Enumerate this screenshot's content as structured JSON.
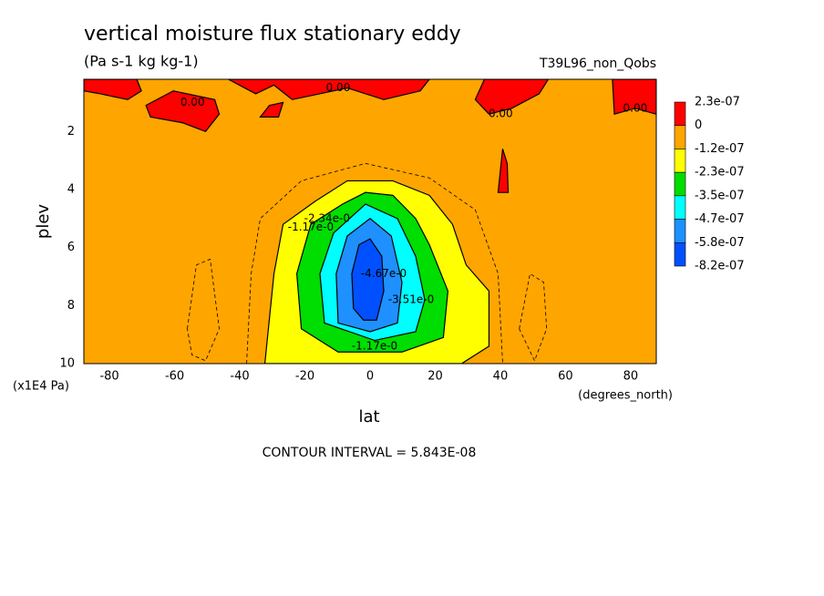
{
  "chart_data": {
    "type": "contour",
    "title": "vertical moisture flux stationary eddy",
    "subtitle": "(Pa s-1 kg kg-1)",
    "dataset": "T39L96_non_Qobs",
    "x_label": "lat",
    "x_units": "(degrees_north)",
    "y_label": "plev",
    "y_units": "(x1E4 Pa)",
    "footer": "CONTOUR INTERVAL = 5.843E-08",
    "xlim": [
      -87.86,
      87.86
    ],
    "xticks": [
      -80,
      -60,
      -40,
      -20,
      0,
      20,
      40,
      60,
      80
    ],
    "ylim": [
      10,
      0.2
    ],
    "yticks": [
      2,
      4,
      6,
      8,
      10
    ],
    "background": "#ffa500",
    "levels": [
      {
        "value": 2.3e-07,
        "label": "2.3e-07"
      },
      0,
      {
        "value": -1.2e-07,
        "label": "-1.2e-07"
      },
      {
        "value": -2.3e-07,
        "label": "-2.3e-07"
      },
      {
        "value": -3.5e-07,
        "label": "-3.5e-07"
      },
      {
        "value": -4.7e-07,
        "label": "-4.7e-07"
      },
      {
        "value": -5.8e-07,
        "label": "-5.8e-07"
      },
      {
        "value": -8.2e-07,
        "label": "-8.2e-07"
      }
    ],
    "colors": [
      "#ff0000",
      "#ffa500",
      "#ffff00",
      "#00dd00",
      "#00ffff",
      "#1e90ff",
      "#0050ff"
    ],
    "regions": [
      {
        "color": "#ffff00",
        "lat": [
          -32.3,
          -29.5,
          -26.7,
          -16.8,
          -7.0,
          7.0,
          18.2,
          25.3,
          29.5,
          36.5,
          36.5,
          28.1
        ],
        "plev": [
          10,
          6.9,
          5.2,
          4.4,
          3.7,
          3.7,
          4.2,
          5.2,
          6.6,
          7.5,
          9.4,
          10
        ]
      },
      {
        "color": "#00dd00",
        "lat": [
          -21.1,
          -22.5,
          -18.2,
          -8.4,
          -1.4,
          7.0,
          14.0,
          18.2,
          23.9,
          22.5,
          9.8,
          -9.8
        ],
        "plev": [
          8.8,
          6.9,
          5.2,
          4.5,
          4.1,
          4.2,
          5.0,
          5.9,
          7.5,
          9.1,
          9.6,
          9.6
        ]
      },
      {
        "color": "#00ffff",
        "lat": [
          -14.0,
          -15.4,
          -11.2,
          -1.4,
          8.4,
          14.0,
          16.8,
          14.0,
          1.4
        ],
        "plev": [
          8.6,
          6.9,
          5.5,
          4.5,
          5.0,
          6.3,
          7.8,
          8.9,
          9.2
        ]
      },
      {
        "color": "#1e90ff",
        "lat": [
          -9.8,
          -10.4,
          -7.0,
          0,
          6.5,
          9.8,
          8.4,
          0
        ],
        "plev": [
          8.6,
          6.9,
          5.6,
          5.0,
          5.6,
          7.2,
          8.6,
          8.9
        ]
      },
      {
        "color": "#0050ff",
        "lat": [
          -5.1,
          -5.6,
          -3.4,
          0,
          3.6,
          4.2,
          2.0,
          -2.0
        ],
        "plev": [
          8.1,
          6.9,
          5.9,
          5.7,
          6.3,
          7.5,
          8.5,
          8.5
        ]
      },
      {
        "color": "#ff0000",
        "lat": [
          -87.86,
          -71.6,
          -70.2,
          -74.4,
          -82.8,
          -87.86
        ],
        "plev": [
          0.2,
          0.2,
          0.6,
          0.9,
          0.7,
          0.6
        ]
      },
      {
        "color": "#ff0000",
        "lat": [
          -68.8,
          -60.4,
          -47.7,
          -46.3,
          -50.5,
          -57.5,
          -67.4
        ],
        "plev": [
          1.1,
          0.6,
          0.9,
          1.4,
          2.0,
          1.7,
          1.5
        ]
      },
      {
        "color": "#ff0000",
        "lat": [
          -43.5,
          18.2,
          15.4,
          4.2,
          -7.0,
          -23.9,
          -29.5,
          -35.1
        ],
        "plev": [
          0.2,
          0.2,
          0.6,
          0.9,
          0.5,
          0.9,
          0.4,
          0.7
        ]
      },
      {
        "color": "#ff0000",
        "lat": [
          -33.7,
          -30.9,
          -26.7,
          -28.1
        ],
        "plev": [
          1.5,
          1.1,
          1.0,
          1.5
        ]
      },
      {
        "color": "#ff0000",
        "lat": [
          35.1,
          54.7,
          51.9,
          43.5,
          36.5,
          32.3
        ],
        "plev": [
          0.2,
          0.2,
          0.7,
          1.2,
          1.4,
          0.9
        ]
      },
      {
        "color": "#ff0000",
        "lat": [
          74.4,
          87.86,
          87.86,
          81.4,
          75.0
        ],
        "plev": [
          0.2,
          0.2,
          1.4,
          1.2,
          1.4
        ]
      },
      {
        "color": "#ff0000",
        "lat": [
          39.3,
          40.7,
          42.1,
          42.4
        ],
        "plev": [
          4.1,
          2.6,
          3.1,
          4.1
        ]
      }
    ],
    "contours": [
      {
        "lat": [
          -37.9,
          -36.5,
          -33.7,
          -21.1,
          -1.4,
          18.2,
          32.3,
          39.3,
          40.7
        ],
        "plev": [
          10,
          6.9,
          5.0,
          3.7,
          3.1,
          3.6,
          4.7,
          6.9,
          10
        ]
      },
      {
        "lat": [
          -56.1,
          -53.3,
          -49.1,
          -46.3,
          -50.5,
          -54.7,
          -56.1
        ],
        "plev": [
          8.8,
          6.6,
          6.4,
          8.8,
          9.9,
          9.7,
          8.8
        ]
      },
      {
        "lat": [
          45.8,
          49.1,
          53.3,
          54.2,
          50.5,
          45.8
        ],
        "plev": [
          8.8,
          6.9,
          7.2,
          8.8,
          9.9,
          8.8
        ]
      }
    ],
    "annotations": [
      {
        "text": "0.00",
        "lat": -54.5,
        "plev": 1.0
      },
      {
        "text": "0.00",
        "lat": -9.8,
        "plev": 0.5
      },
      {
        "text": "0.00",
        "lat": 40.1,
        "plev": 1.4
      },
      {
        "text": "0.00",
        "lat": 81.4,
        "plev": 1.2
      },
      {
        "text": "-1.17e-0",
        "lat": -18.2,
        "plev": 5.3
      },
      {
        "text": "-2.34e-0",
        "lat": -13.2,
        "plev": 5.0
      },
      {
        "text": "-4.67e-0",
        "lat": 4.2,
        "plev": 6.9
      },
      {
        "text": "-3.51e-0",
        "lat": 12.6,
        "plev": 7.8
      },
      {
        "text": "-1.17e-0",
        "lat": 1.4,
        "plev": 9.4
      }
    ]
  }
}
